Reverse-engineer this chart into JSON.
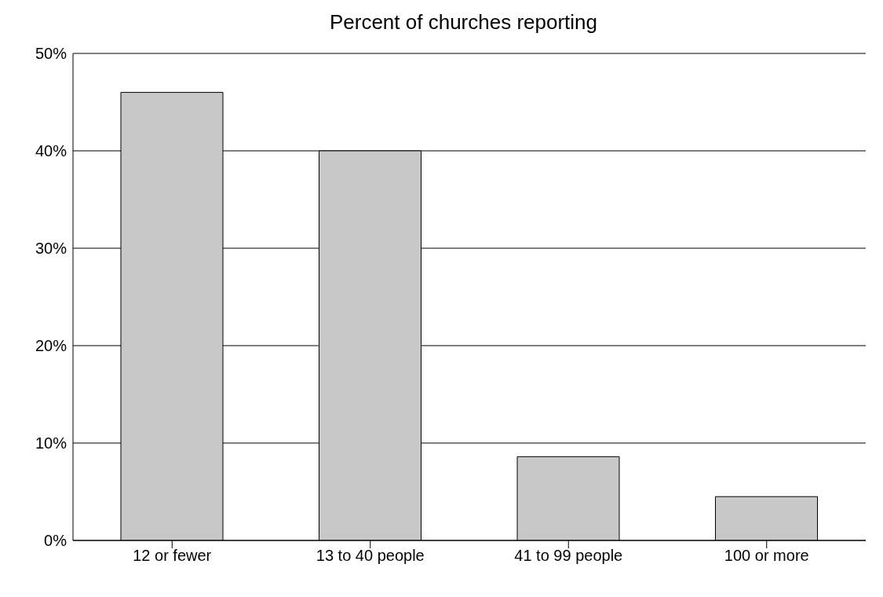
{
  "chart_data": {
    "type": "bar",
    "title": "Percent of churches reporting",
    "categories": [
      "12 or fewer",
      "13 to 40 people",
      "41 to 99 people",
      "100 or more"
    ],
    "values": [
      46,
      40,
      8.6,
      4.5
    ],
    "color": "#c8c8c8",
    "ylim": [
      0,
      50
    ],
    "yticks": [
      {
        "value": 0,
        "label": "0%"
      },
      {
        "value": 10,
        "label": "10%"
      },
      {
        "value": 20,
        "label": "20%"
      },
      {
        "value": 30,
        "label": "30%"
      },
      {
        "value": 40,
        "label": "40%"
      },
      {
        "value": 50,
        "label": "50%"
      }
    ],
    "grid": "y"
  }
}
